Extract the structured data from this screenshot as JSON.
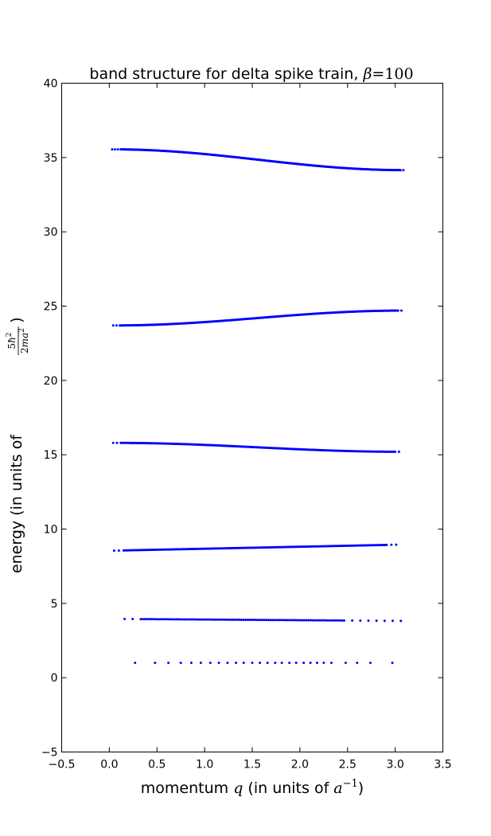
{
  "chart_data": {
    "type": "scatter",
    "title": {
      "prefix": "band structure for delta spike train, ",
      "symbol": "β",
      "op": "=",
      "value": "100"
    },
    "xlabel": {
      "prefix": "momentum ",
      "symbol": "q",
      "middle": " (in units of ",
      "base": "a",
      "exponent": "−1",
      "suffix": ")"
    },
    "ylabel": {
      "prefix": "energy (in units of ",
      "numerator_coef": "5",
      "numerator_sym": "ħ",
      "numerator_exp": "2",
      "denominator_coef": "2",
      "denominator_sym": "ma",
      "denominator_exp": "2",
      "suffix": ")"
    },
    "xlim": [
      -0.5,
      3.5
    ],
    "ylim": [
      -5,
      40
    ],
    "xticks": [
      "−0.5",
      "0.0",
      "0.5",
      "1.0",
      "1.5",
      "2.0",
      "2.5",
      "3.0",
      "3.5"
    ],
    "yticks": [
      "−5",
      "0",
      "5",
      "10",
      "15",
      "20",
      "25",
      "30",
      "35",
      "40"
    ],
    "grid": false,
    "marker_color": "#0000ff",
    "bands": [
      {
        "x": [
          0.27,
          0.48,
          0.62,
          0.75,
          0.86,
          0.96,
          1.06,
          1.15,
          1.24,
          1.33,
          1.41,
          1.5,
          1.58,
          1.66,
          1.74,
          1.81,
          1.89,
          1.96,
          2.04,
          2.11,
          2.18,
          2.25,
          2.33,
          2.48,
          2.6,
          2.74,
          2.97
        ],
        "y_start": 1.0,
        "y_end": 1.0,
        "shape": "flat"
      },
      {
        "x_start": 0.16,
        "x_end": 3.09,
        "dense_start": 0.3,
        "dense_end": 2.45,
        "sparse_step": 0.085,
        "dense_step": 0.022,
        "y_start": 3.95,
        "y_end": 3.82,
        "shape": "linear"
      },
      {
        "x_start": 0.05,
        "x_end": 3.04,
        "dense_start": 0.15,
        "dense_end": 2.9,
        "sparse_step": 0.05,
        "dense_step": 0.015,
        "y_start": 8.55,
        "y_end": 8.95,
        "shape": "linear"
      },
      {
        "x_start": 0.04,
        "x_end": 3.07,
        "dense_start": 0.12,
        "dense_end": 3.0,
        "sparse_step": 0.04,
        "dense_step": 0.012,
        "y_start": 15.8,
        "y_end": 15.2,
        "shape": "cosine"
      },
      {
        "x_start": 0.04,
        "x_end": 3.08,
        "dense_start": 0.1,
        "dense_end": 3.02,
        "sparse_step": 0.035,
        "dense_step": 0.01,
        "y_start": 23.7,
        "y_end": 24.7,
        "shape": "cosine"
      },
      {
        "x_start": 0.03,
        "x_end": 3.1,
        "dense_start": 0.1,
        "dense_end": 3.05,
        "sparse_step": 0.03,
        "dense_step": 0.008,
        "y_start": 35.55,
        "y_end": 34.15,
        "shape": "cosine"
      }
    ]
  }
}
